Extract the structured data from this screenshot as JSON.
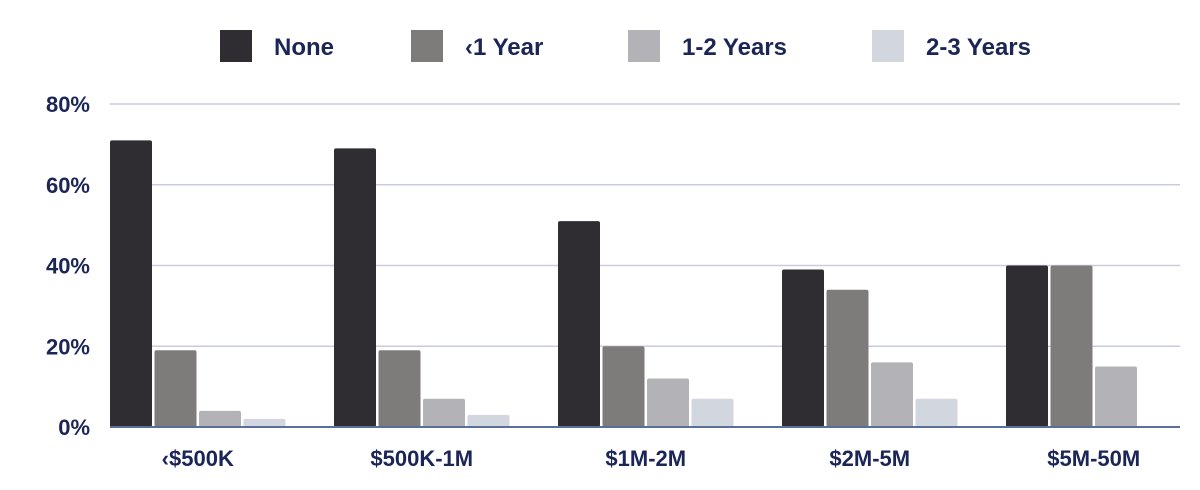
{
  "chart_data": {
    "type": "bar",
    "categories": [
      "‹$500K",
      "$500K-1M",
      "$1M-2M",
      "$2M-5M",
      "$5M-50M"
    ],
    "series": [
      {
        "name": "None",
        "color": "#2f2d32",
        "values": [
          71,
          69,
          51,
          39,
          40
        ]
      },
      {
        "name": "‹1 Year",
        "color": "#7e7b7b",
        "values": [
          19,
          19,
          20,
          34,
          40
        ]
      },
      {
        "name": "1-2 Years",
        "color": "#b3b2b7",
        "values": [
          4,
          7,
          12,
          16,
          15
        ]
      },
      {
        "name": "2-3 Years",
        "color": "#d2d6de",
        "values": [
          2,
          3,
          7,
          7,
          0
        ]
      }
    ],
    "y_ticks": [
      "0%",
      "20%",
      "40%",
      "60%",
      "80%"
    ],
    "y_tick_values": [
      0,
      20,
      40,
      60,
      80
    ],
    "ylim": [
      0,
      80
    ],
    "grid": true,
    "legend_position": "top",
    "colors": {
      "text": "#1b2556",
      "grid": "#c9cce0",
      "axis": "#5a6f9a"
    }
  }
}
